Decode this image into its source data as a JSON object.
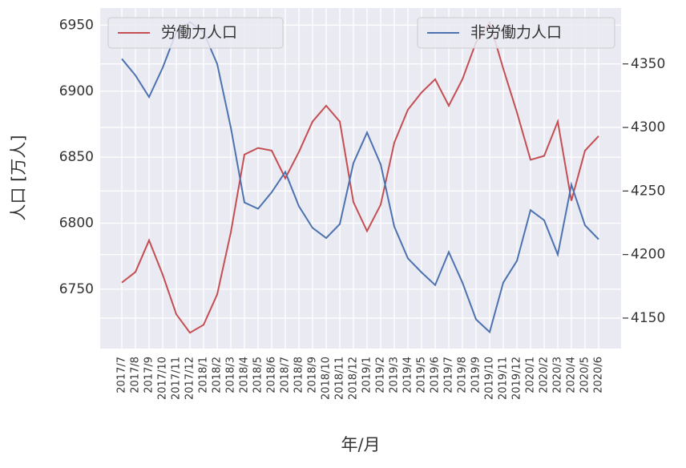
{
  "chart_data": {
    "type": "line",
    "x_label": "年/月",
    "y_label": "人口 [万人]",
    "categories": [
      "2017/7",
      "2017/8",
      "2017/9",
      "2017/10",
      "2017/11",
      "2017/12",
      "2018/1",
      "2018/2",
      "2018/3",
      "2018/4",
      "2018/5",
      "2018/6",
      "2018/7",
      "2018/8",
      "2018/9",
      "2018/10",
      "2018/11",
      "2018/12",
      "2019/1",
      "2019/2",
      "2019/3",
      "2019/4",
      "2019/5",
      "2019/6",
      "2019/7",
      "2019/8",
      "2019/9",
      "2019/10",
      "2019/11",
      "2019/12",
      "2020/1",
      "2020/2",
      "2020/3",
      "2020/4",
      "2020/5",
      "2020/6"
    ],
    "series": [
      {
        "name": "労働力人口",
        "color": "#c44e52",
        "legend": "upper left",
        "values": [
          6755,
          6763,
          6787,
          6761,
          6731,
          6717,
          6723,
          6746,
          6793,
          6852,
          6857,
          6855,
          6834,
          6854,
          6877,
          6889,
          6877,
          6816,
          6794,
          6814,
          6861,
          6886,
          6899,
          6909,
          6889,
          6909,
          6937,
          6952,
          6917,
          6884,
          6848,
          6851,
          6877,
          6817,
          6855,
          6866
        ]
      },
      {
        "name": "非労働力人口",
        "color": "#4c72b0",
        "axis": "y2",
        "legend": "upper right",
        "values": [
          4354,
          4341,
          4324,
          4347,
          4375,
          4383,
          4375,
          4350,
          4300,
          4241,
          4236,
          4249,
          4265,
          4238,
          4221,
          4213,
          4224,
          4272,
          4296,
          4271,
          4222,
          4197,
          4186,
          4176,
          4202,
          4178,
          4149,
          4139,
          4178,
          4195,
          4235,
          4227,
          4200,
          4255,
          4223,
          4212
        ]
      }
    ],
    "ylim": [
      6705,
      6963
    ],
    "yticks": [
      6750,
      6800,
      6850,
      6900,
      6950
    ],
    "y2lim": [
      4126,
      4394
    ],
    "y2ticks": [
      4150,
      4200,
      4250,
      4300,
      4350
    ],
    "grid": true
  }
}
